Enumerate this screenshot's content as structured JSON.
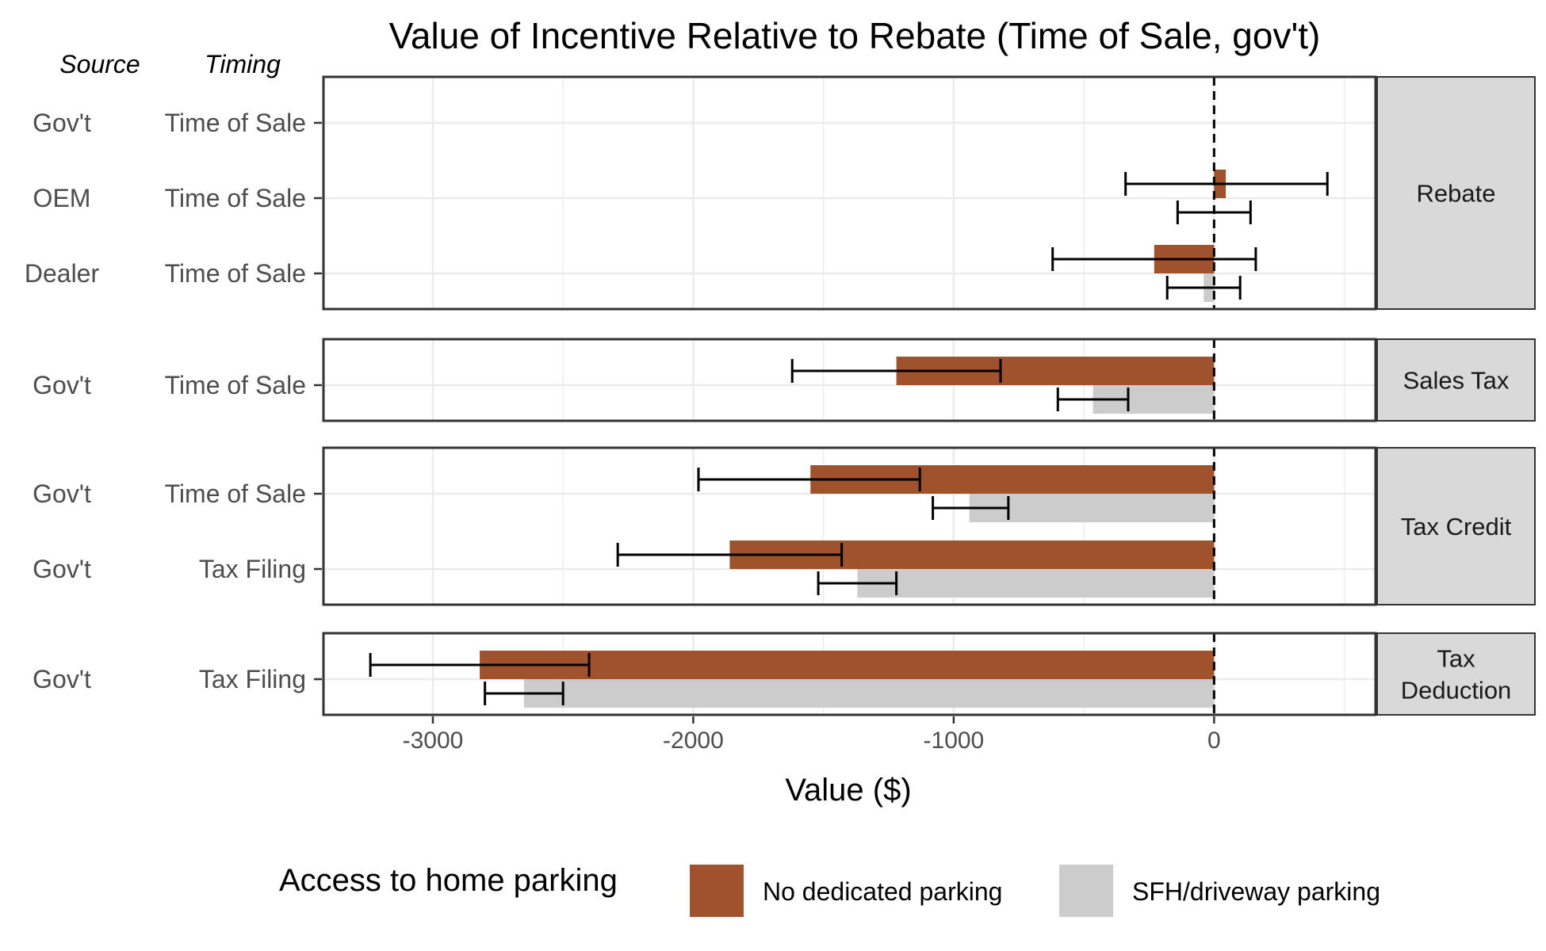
{
  "chart_data": {
    "type": "bar",
    "orientation": "horizontal",
    "title": "Value of Incentive Relative to Rebate (Time of Sale, gov't)",
    "xlabel": "Value ($)",
    "xlim": [
      -3420,
      620
    ],
    "xticks": [
      -3000,
      -2000,
      -1000,
      0
    ],
    "xtick_labels": [
      "-3000",
      "-2000",
      "-1000",
      "0"
    ],
    "grid": true,
    "reference_line": 0,
    "row_headers": {
      "source": "Source",
      "timing": "Timing"
    },
    "legend": {
      "title": "Access to home parking",
      "position": "bottom",
      "entries": [
        {
          "label": "No dedicated parking",
          "color": "#a0522d"
        },
        {
          "label": "SFH/driveway parking",
          "color": "#cccccc"
        }
      ]
    },
    "series_colors": {
      "no_dedicated": "#a0522d",
      "sfh": "#cccccc"
    },
    "panels": [
      {
        "strip": "Rebate",
        "rows": [
          {
            "source": "Gov't",
            "timing": "Time of Sale",
            "no_dedicated": null,
            "sfh": null
          },
          {
            "source": "OEM",
            "timing": "Time of Sale",
            "no_dedicated": {
              "value": 45,
              "low": -340,
              "high": 435
            },
            "sfh": {
              "value": 0,
              "low": -140,
              "high": 140
            }
          },
          {
            "source": "Dealer",
            "timing": "Time of Sale",
            "no_dedicated": {
              "value": -230,
              "low": -620,
              "high": 160
            },
            "sfh": {
              "value": -40,
              "low": -180,
              "high": 100
            }
          }
        ]
      },
      {
        "strip": "Sales Tax",
        "rows": [
          {
            "source": "Gov't",
            "timing": "Time of Sale",
            "no_dedicated": {
              "value": -1220,
              "low": -1620,
              "high": -820
            },
            "sfh": {
              "value": -465,
              "low": -600,
              "high": -330
            }
          }
        ]
      },
      {
        "strip": "Tax Credit",
        "rows": [
          {
            "source": "Gov't",
            "timing": "Time of Sale",
            "no_dedicated": {
              "value": -1550,
              "low": -1980,
              "high": -1130
            },
            "sfh": {
              "value": -940,
              "low": -1080,
              "high": -790
            }
          },
          {
            "source": "Gov't",
            "timing": "Tax Filing",
            "no_dedicated": {
              "value": -1860,
              "low": -2290,
              "high": -1430
            },
            "sfh": {
              "value": -1370,
              "low": -1520,
              "high": -1220
            }
          }
        ]
      },
      {
        "strip": "Tax Deduction",
        "strip_lines": [
          "Tax",
          "Deduction"
        ],
        "rows": [
          {
            "source": "Gov't",
            "timing": "Tax Filing",
            "no_dedicated": {
              "value": -2820,
              "low": -3240,
              "high": -2400
            },
            "sfh": {
              "value": -2650,
              "low": -2800,
              "high": -2500
            }
          }
        ]
      }
    ]
  }
}
